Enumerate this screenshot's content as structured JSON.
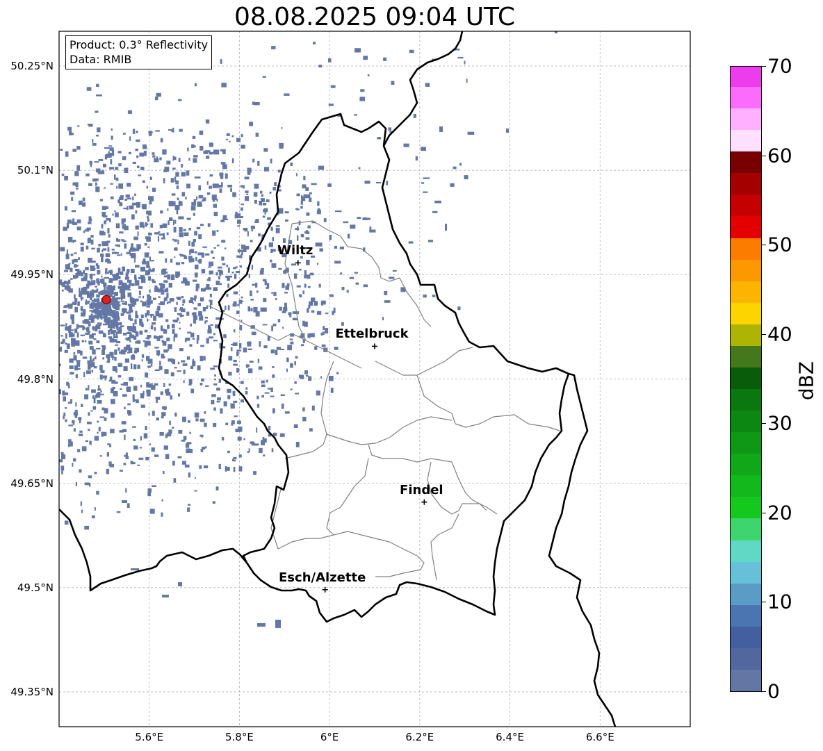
{
  "title": "08.08.2025 09:04 UTC",
  "info": {
    "product": "Product: 0.3° Reflectivity",
    "data": "Data: RMIB"
  },
  "map_extent": {
    "lon_min": 5.4,
    "lon_max": 6.8,
    "lat_min": 49.3,
    "lat_max": 50.3
  },
  "lat_ticks": [
    {
      "value": 50.25,
      "label": "50.25°N"
    },
    {
      "value": 50.1,
      "label": "50.1°N"
    },
    {
      "value": 49.95,
      "label": "49.95°N"
    },
    {
      "value": 49.8,
      "label": "49.8°N"
    },
    {
      "value": 49.65,
      "label": "49.65°N"
    },
    {
      "value": 49.5,
      "label": "49.5°N"
    },
    {
      "value": 49.35,
      "label": "49.35°N"
    }
  ],
  "lon_ticks": [
    {
      "value": 5.6,
      "label": "5.6°E"
    },
    {
      "value": 5.8,
      "label": "5.8°E"
    },
    {
      "value": 6.0,
      "label": "6°E"
    },
    {
      "value": 6.2,
      "label": "6.2°E"
    },
    {
      "value": 6.4,
      "label": "6.4°E"
    },
    {
      "value": 6.6,
      "label": "6.6°E"
    }
  ],
  "cities": [
    {
      "name": "Wiltz",
      "lon": 5.93,
      "lat": 49.967
    },
    {
      "name": "Ettelbruck",
      "lon": 6.1,
      "lat": 49.847
    },
    {
      "name": "Findel",
      "lon": 6.21,
      "lat": 49.623
    },
    {
      "name": "Esch/Alzette",
      "lon": 5.99,
      "lat": 49.497
    }
  ],
  "radar_site": {
    "lon": 5.505,
    "lat": 49.914,
    "color": "#e02020"
  },
  "colorbar": {
    "label": "dBZ",
    "min": 0,
    "max": 70,
    "ticks": [
      0,
      10,
      20,
      30,
      40,
      50,
      60,
      70
    ],
    "colors": [
      "#6476a4",
      "#52679e",
      "#445fa0",
      "#4a75b0",
      "#5a9cc6",
      "#66c0d8",
      "#60d8c4",
      "#3ed46e",
      "#14c81e",
      "#12b81c",
      "#10a818",
      "#0e9816",
      "#0c8812",
      "#0a780e",
      "#085c0a",
      "#44781a",
      "#aeb404",
      "#fcd400",
      "#fcb400",
      "#fc9800",
      "#fc7c00",
      "#e40000",
      "#c40000",
      "#a40000",
      "#780000",
      "#ffe0ff",
      "#ffb0ff",
      "#fc6cfc",
      "#ec3cec"
    ]
  },
  "echo_color": "#6478a6"
}
